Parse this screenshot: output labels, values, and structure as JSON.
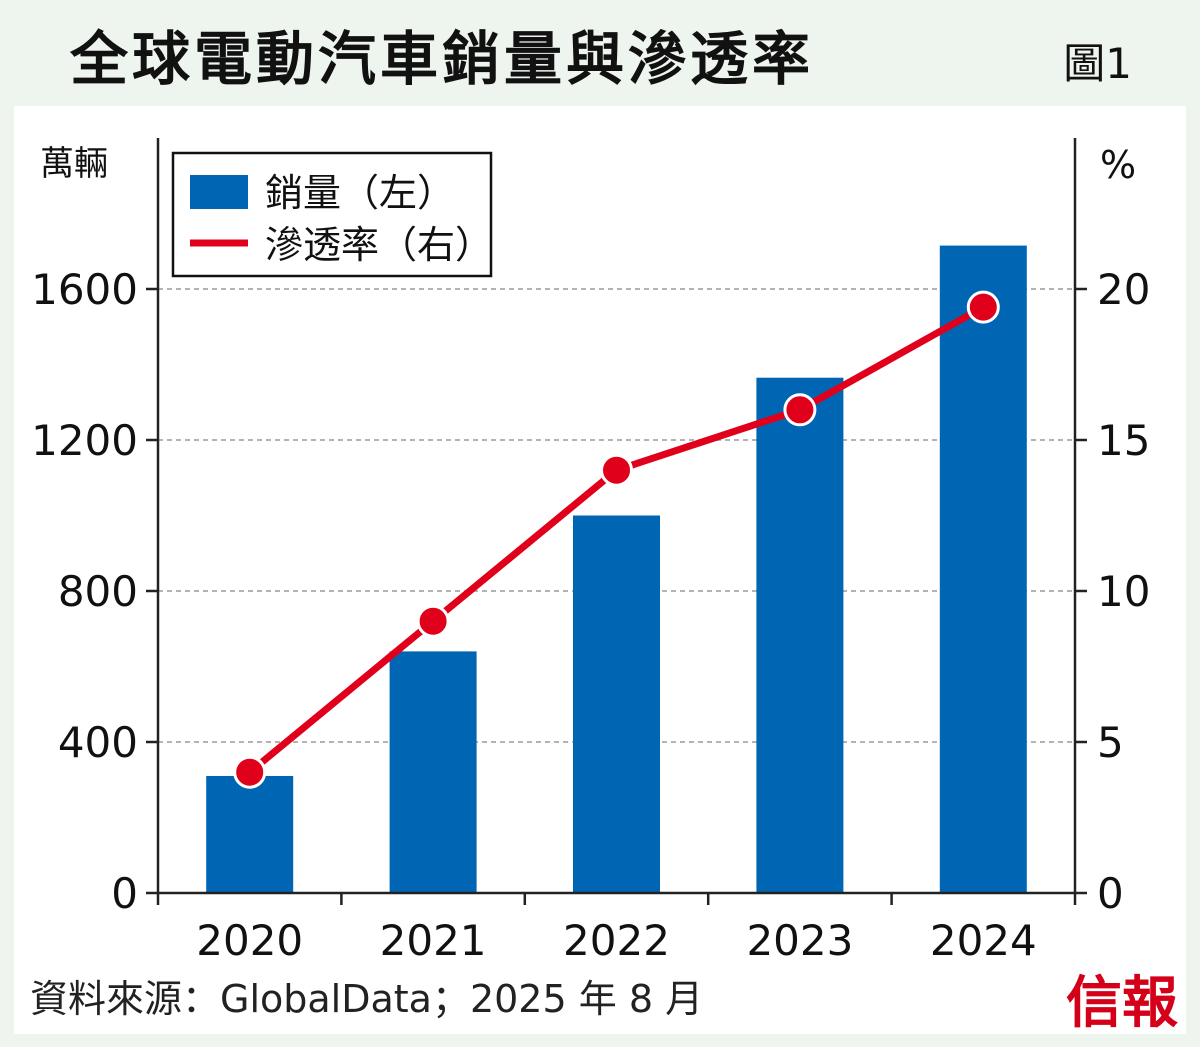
{
  "title": "全球電動汽車銷量與滲透率",
  "figure_label": "圖1",
  "source": "資料來源：GlobalData；2025 年 8 月",
  "brand": "信報",
  "colors": {
    "bar": "#0066b3",
    "line": "#e0001b",
    "point_stroke": "#ffffff"
  },
  "chart_data": {
    "type": "bar",
    "categories": [
      "2020",
      "2021",
      "2022",
      "2023",
      "2024"
    ],
    "series": [
      {
        "name": "銷量（左）",
        "type": "bar",
        "axis": "left",
        "values": [
          310,
          640,
          1000,
          1365,
          1715
        ]
      },
      {
        "name": "滲透率（右）",
        "type": "line",
        "axis": "right",
        "values": [
          4,
          9,
          14,
          16,
          19.4
        ]
      }
    ],
    "ylabel_left": "萬輛",
    "ylabel_right": "%",
    "ylim_left": [
      0,
      2000
    ],
    "ylim_right": [
      0,
      25
    ],
    "yticks_left": [
      0,
      400,
      800,
      1200,
      1600
    ],
    "yticks_right": [
      0,
      5,
      10,
      15,
      20
    ],
    "grid": true,
    "legend": "top-left"
  }
}
